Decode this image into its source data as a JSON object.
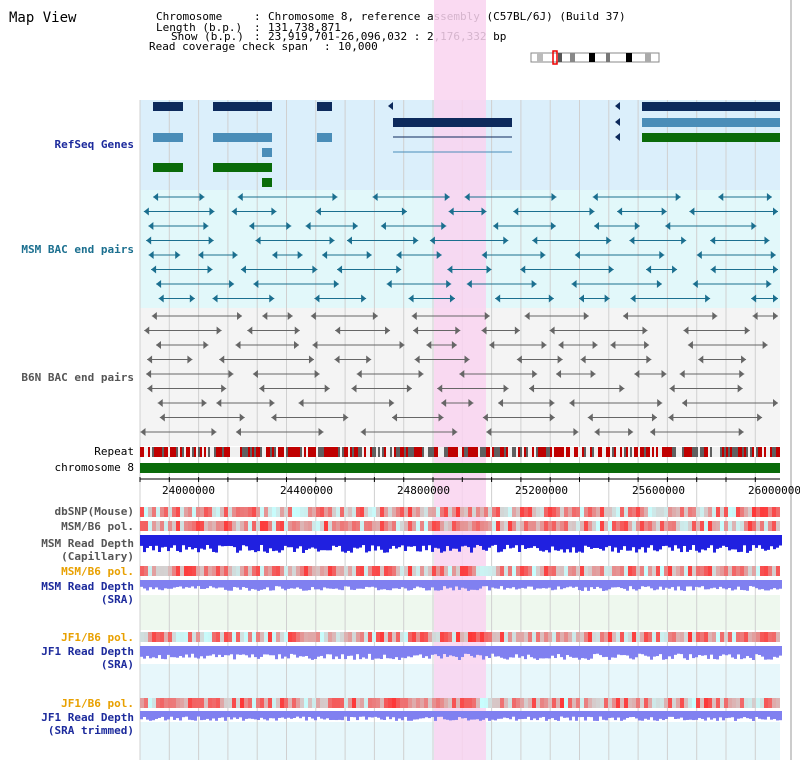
{
  "title": "Map View",
  "info": {
    "chromosome_label": "Chromosome",
    "chromosome_value": "Chromosome 8, reference assembly (C57BL/6J) (Build 37)",
    "length_label": "Length (b.p.)",
    "length_value": "131,738,871",
    "show_label": "Show (b.p.)",
    "show_value": "23,919,701-26,096,032 : 2,176,332 bp",
    "coverage_label": "Read coverage check span",
    "coverage_value": "10,000"
  },
  "tracks": {
    "refseq": "RefSeq Genes",
    "msm_bac": "MSM BAC end pairs",
    "b6n_bac": "B6N BAC end pairs",
    "repeat": "Repeat",
    "chromosome": "chromosome 8",
    "dbsnp": "dbSNP(Mouse)",
    "msm_b6_pol": "MSM/B6 pol.",
    "msm_depth_cap_1": "MSM Read Depth",
    "msm_depth_cap_2": "(Capillary)",
    "msm_b6_pol2": "MSM/B6 pol.",
    "msm_depth_sra_1": "MSM Read Depth",
    "msm_depth_sra_2": "(SRA)",
    "jf1_b6_pol": "JF1/B6 pol.",
    "jf1_depth_sra_1": "JF1 Read Depth",
    "jf1_depth_sra_2": "(SRA)",
    "jf1_b6_pol2": "JF1/B6 pol.",
    "jf1_trim_1": "JF1 Read Depth",
    "jf1_trim_2": "(SRA trimmed)"
  },
  "ruler_ticks": [
    "24000000",
    "24400000",
    "24800000",
    "25200000",
    "25600000",
    "26000000"
  ],
  "colors": {
    "highlight": "#f9d3f0",
    "refseq_bg": "#dbeffb",
    "msm_bg": "#e2f8fa",
    "b6n_bg": "#f4f4f4",
    "gene_navy": "#0d2a5c",
    "gene_steel": "#4a8db8",
    "gene_green": "#0a6b0a",
    "chromosome_green": "#0a6b0a",
    "depth_blue": "#2020e0",
    "depth_violet": "#8080f0"
  }
}
